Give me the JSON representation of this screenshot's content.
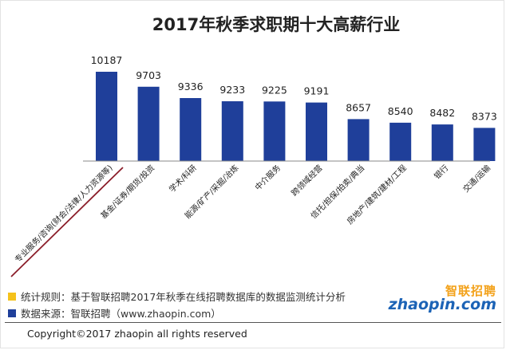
{
  "chart_data": {
    "type": "bar",
    "title": "2017年秋季求职期十大高薪行业",
    "categories": [
      "专业服务/咨询(财会/法律/人力资源等)",
      "基金/证券/期货/投资",
      "学术/科研",
      "能源/矿产/采掘/冶炼",
      "中介服务",
      "跨领域经营",
      "信托/担保/拍卖/典当",
      "房地产/建筑/建材/工程",
      "银行",
      "交通/运输"
    ],
    "values": [
      10187,
      9703,
      9336,
      9233,
      9225,
      9191,
      8657,
      8540,
      8482,
      8373
    ],
    "data_labels": [
      "10187",
      "9703",
      "9336",
      "9233",
      "9225",
      "9191",
      "8657",
      "8540",
      "8482",
      "8373"
    ],
    "ylim": [
      0,
      10187
    ],
    "xlabel": "",
    "ylabel": "",
    "bar_color": "#1f3f9a",
    "grid": false
  },
  "footer": {
    "rule_text": "统计规则：基于智联招聘2017年秋季在线招聘数据库的数据监测统计分析",
    "source_text": "数据来源：智联招聘（www.zhaopin.com）",
    "rule_color": "#f5c21b",
    "source_color": "#1f3f9a",
    "copyright": "Copyright©2017 zhaopin all rights reserved"
  },
  "logo": {
    "cn": "智联招聘",
    "en": "zhaopin.com"
  }
}
